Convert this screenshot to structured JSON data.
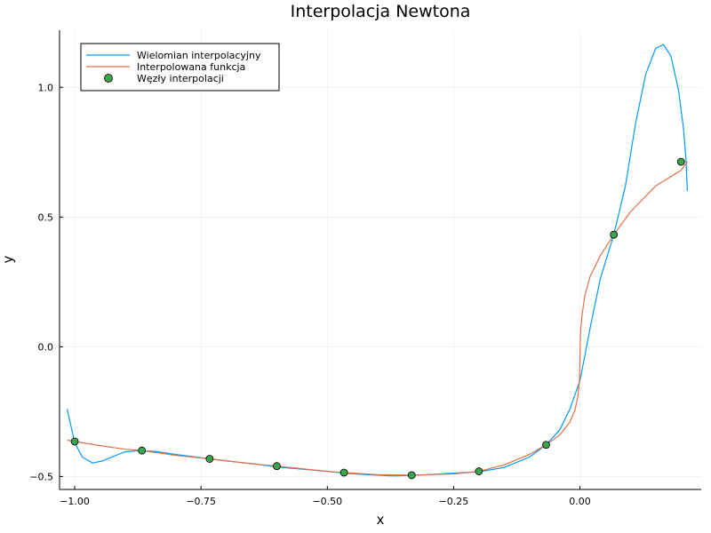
{
  "chart_data": {
    "type": "line",
    "title": "Interpolacja Newtona",
    "xlabel": "x",
    "ylabel": "y",
    "xlim": [
      -1.03,
      0.24
    ],
    "ylim": [
      -0.55,
      1.22
    ],
    "x_ticks": [
      -1.0,
      -0.75,
      -0.5,
      -0.25,
      0.0
    ],
    "x_tick_labels": [
      "−1.00",
      "−0.75",
      "−0.50",
      "−0.25",
      "0.00"
    ],
    "y_ticks": [
      -0.5,
      0.0,
      0.5,
      1.0
    ],
    "y_tick_labels": [
      "−0.5",
      "0.0",
      "0.5",
      "1.0"
    ],
    "grid": true,
    "legend_position": "top-left",
    "series": [
      {
        "name": "Wielomian interpolacyjny",
        "type": "line",
        "color": "#009AFA",
        "x": [
          -1.015,
          -1.0,
          -0.985,
          -0.965,
          -0.945,
          -0.92,
          -0.9,
          -0.87,
          -0.84,
          -0.8,
          -0.76,
          -0.733,
          -0.7,
          -0.65,
          -0.6,
          -0.55,
          -0.5,
          -0.467,
          -0.42,
          -0.37,
          -0.333,
          -0.3,
          -0.26,
          -0.2,
          -0.15,
          -0.1,
          -0.067,
          -0.04,
          -0.02,
          0.0,
          0.02,
          0.04,
          0.067,
          0.09,
          0.11,
          0.13,
          0.15,
          0.165,
          0.18,
          0.195,
          0.205,
          0.21,
          0.2125
        ],
        "y": [
          -0.24,
          -0.37,
          -0.425,
          -0.448,
          -0.44,
          -0.42,
          -0.405,
          -0.4,
          -0.403,
          -0.415,
          -0.425,
          -0.432,
          -0.44,
          -0.45,
          -0.463,
          -0.472,
          -0.48,
          -0.487,
          -0.493,
          -0.498,
          -0.496,
          -0.493,
          -0.488,
          -0.482,
          -0.465,
          -0.425,
          -0.378,
          -0.32,
          -0.24,
          -0.13,
          0.07,
          0.26,
          0.432,
          0.62,
          0.86,
          1.05,
          1.15,
          1.165,
          1.12,
          0.99,
          0.84,
          0.72,
          0.6
        ]
      },
      {
        "name": "Interpolowana funkcja",
        "type": "line",
        "color": "#E26F46",
        "x": [
          -1.015,
          -1.0,
          -0.95,
          -0.9,
          -0.867,
          -0.8,
          -0.733,
          -0.65,
          -0.6,
          -0.5,
          -0.467,
          -0.4,
          -0.333,
          -0.25,
          -0.2,
          -0.15,
          -0.1,
          -0.067,
          -0.04,
          -0.02,
          -0.01,
          -0.004,
          -0.001,
          0.0,
          0.001,
          0.004,
          0.01,
          0.02,
          0.04,
          0.067,
          0.1,
          0.15,
          0.2,
          0.2125
        ],
        "y": [
          -0.36,
          -0.365,
          -0.381,
          -0.395,
          -0.4,
          -0.419,
          -0.432,
          -0.451,
          -0.46,
          -0.48,
          -0.485,
          -0.493,
          -0.495,
          -0.49,
          -0.48,
          -0.455,
          -0.415,
          -0.378,
          -0.34,
          -0.29,
          -0.245,
          -0.19,
          -0.13,
          -0.05,
          0.05,
          0.12,
          0.2,
          0.27,
          0.35,
          0.432,
          0.52,
          0.62,
          0.68,
          0.713
        ]
      },
      {
        "name": "Węzły interpolacji",
        "type": "scatter",
        "color": "#3DA44D",
        "x": [
          -1.0,
          -0.867,
          -0.733,
          -0.6,
          -0.467,
          -0.333,
          -0.2,
          -0.067,
          0.067,
          0.2
        ],
        "y": [
          -0.365,
          -0.4,
          -0.432,
          -0.46,
          -0.485,
          -0.495,
          -0.48,
          -0.378,
          0.432,
          0.713
        ]
      }
    ]
  }
}
